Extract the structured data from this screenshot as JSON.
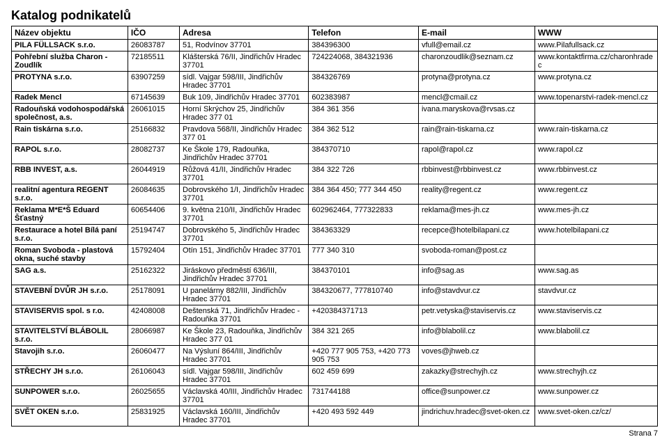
{
  "title": "Katalog podnikatelů",
  "footer": "Strana 7",
  "columns": [
    "Název objektu",
    "IČO",
    "Adresa",
    "Telefon",
    "E-mail",
    "WWW"
  ],
  "rows": [
    [
      "PILA FÜLLSACK s.r.o.",
      "26083787",
      "51, Rodvínov 37701",
      "384396300",
      "vfull@email.cz",
      "www.Pilafullsack.cz"
    ],
    [
      "Pohřební služba Charon - Zoudlík",
      "72185511",
      "Klášterská 76/II, Jindřichův Hradec 37701",
      "724224068, 384321936",
      "charonzoudlik@seznam.cz",
      "www.kontaktfirma.cz/charonhradec"
    ],
    [
      "PROTYNA s.r.o.",
      "63907259",
      "sídl. Vajgar 598/III, Jindřichův Hradec 37701",
      "384326769",
      "protyna@protyna.cz",
      "www.protyna.cz"
    ],
    [
      "Radek Mencl",
      "67145639",
      "Buk 109, Jindřichův Hradec 37701",
      "602383987",
      "mencl@cmail.cz",
      "www.topenarstvi-radek-mencl.cz"
    ],
    [
      "Radouňská vodohospodářská společnost, a.s.",
      "26061015",
      "Horní Skrýchov 25, Jindřichův Hradec 377 01",
      "384 361 356",
      "ivana.maryskova@rvsas.cz",
      ""
    ],
    [
      "Rain tiskárna s.r.o.",
      "25166832",
      "Pravdova 568/II, Jindřichův Hradec 377 01",
      "384 362 512",
      "rain@rain-tiskarna.cz",
      "www.rain-tiskarna.cz"
    ],
    [
      "RAPOL s.r.o.",
      "28082737",
      "Ke Škole 179, Radouňka, Jindřichův Hradec 37701",
      "384370710",
      "rapol@rapol.cz",
      "www.rapol.cz"
    ],
    [
      "RBB INVEST, a.s.",
      "26044919",
      "Růžová 41/II, Jindřichův Hradec 37701",
      "384 322 726",
      "rbbinvest@rbbinvest.cz",
      "www.rbbinvest.cz"
    ],
    [
      "realitní agentura REGENT s.r.o.",
      "26084635",
      "Dobrovského 1/I, Jindřichův Hradec 37701",
      "384 364 450; 777 344 450",
      "reality@regent.cz",
      "www.regent.cz"
    ],
    [
      "Reklama M*E*Š Eduard Šťastný",
      "60654406",
      "9. května 210/II, Jindřichův Hradec 37701",
      "602962464, 777322833",
      "reklama@mes-jh.cz",
      "www.mes-jh.cz"
    ],
    [
      "Restaurace a hotel Bílá paní s.r.o.",
      "25194747",
      "Dobrovského 5, Jindřichův Hradec 37701",
      "384363329",
      "recepce@hotelbilapani.cz",
      "www.hotelbilapani.cz"
    ],
    [
      "Roman Svoboda - plastová okna, suché stavby",
      "15792404",
      "Otín 151, Jindřichův Hradec 37701",
      "777 340 310",
      "svoboda-roman@post.cz",
      ""
    ],
    [
      "SAG a.s.",
      "25162322",
      "Jiráskovo předměstí 636/III, Jindřichův Hradec 37701",
      "384370101",
      "info@sag.as",
      "www.sag.as"
    ],
    [
      "STAVEBNÍ DVŮR JH s.r.o.",
      "25178091",
      "U panelárny 882/III, Jindřichův Hradec 37701",
      "384320677, 777810740",
      "info@stavdvur.cz",
      "stavdvur.cz"
    ],
    [
      "STAVISERVIS spol. s r.o.",
      "42408008",
      "Deštenská 71, Jindřichův Hradec - Radouňka 37701",
      "+420384371713",
      "petr.vetyska@staviservis.cz",
      "www.staviservis.cz"
    ],
    [
      "STAVITELSTVÍ BLÁBOLIL s.r.o.",
      "28066987",
      "Ke Škole 23, Radouňka, Jindřichův Hradec 377 01",
      "384 321 265",
      "info@blabolil.cz",
      "www.blabolil.cz"
    ],
    [
      "Stavojih s.r.o.",
      "26060477",
      "Na Výsluní 864/III, Jindřichův Hradec 37701",
      "+420 777 905 753, +420 773 905 753",
      "voves@jhweb.cz",
      ""
    ],
    [
      "STŘECHY JH s.r.o.",
      "26106043",
      "sídl. Vajgar 598/III, Jindřichův Hradec 37701",
      "602 459 699",
      "zakazky@strechyjh.cz",
      "www.strechyjh.cz"
    ],
    [
      "SUNPOWER s.r.o.",
      "26025655",
      "Václavská 40/III, Jindřichův Hradec 37701",
      "731744188",
      "office@sunpower.cz",
      "www.sunpower.cz"
    ],
    [
      "SVĚT OKEN s.r.o.",
      "25831925",
      "Václavská 160/III, Jindřichův Hradec 37701",
      "+420 493 592 449",
      "jindrichuv.hradec@svet-oken.cz",
      "www.svet-oken.cz/cz/"
    ]
  ]
}
